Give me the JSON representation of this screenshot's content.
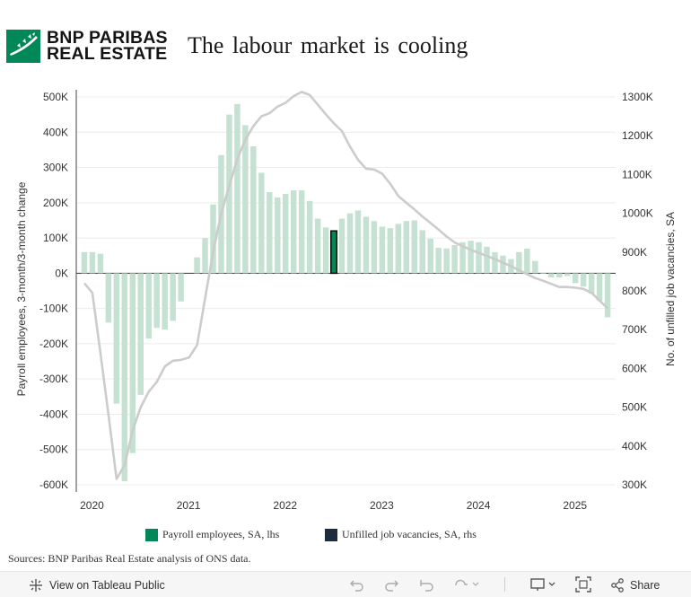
{
  "header": {
    "logo_line1": "BNP PARIBAS",
    "logo_line2": "REAL ESTATE",
    "title": "The labour market is cooling",
    "logo_color": "#008859"
  },
  "chart_data": {
    "type": "bar",
    "left_axis": {
      "label": "Payroll employees, 3-month/3-month change",
      "ylim": [
        -600000,
        500000
      ],
      "ticks": [
        500000,
        400000,
        300000,
        200000,
        100000,
        0,
        -100000,
        -200000,
        -300000,
        -400000,
        -500000,
        -600000
      ],
      "tick_labels": [
        "500K",
        "400K",
        "300K",
        "200K",
        "100K",
        "0K",
        "-100K",
        "-200K",
        "-300K",
        "-400K",
        "-500K",
        "-600K"
      ]
    },
    "right_axis": {
      "label": "No. of unfilled job vacancies, SA",
      "ylim": [
        300000,
        1300000
      ],
      "ticks": [
        1300000,
        1200000,
        1100000,
        1000000,
        900000,
        800000,
        700000,
        600000,
        500000,
        400000,
        300000
      ],
      "tick_labels": [
        "1300K",
        "1200K",
        "1100K",
        "1000K",
        "900K",
        "800K",
        "700K",
        "600K",
        "500K",
        "400K",
        "300K"
      ]
    },
    "x_axis": {
      "ticks": [
        2020,
        2021,
        2022,
        2023,
        2024,
        2025
      ],
      "tick_labels": [
        "2020",
        "2021",
        "2022",
        "2023",
        "2024",
        "2025"
      ],
      "range": [
        2019.875,
        2025.458
      ]
    },
    "grid": true,
    "legend_placement": "bottom",
    "highlighted_month": "2022-07",
    "series": [
      {
        "name": "Payroll employees, SA, lhs",
        "axis": "left",
        "kind": "bar",
        "color": "#c5e1d1",
        "highlight_color": "#008859",
        "start": "2019-12",
        "values": [
          60000,
          60000,
          55000,
          -140000,
          -370000,
          -590000,
          -510000,
          -345000,
          -185000,
          -155000,
          -160000,
          -135000,
          -80000,
          0,
          45000,
          100000,
          195000,
          335000,
          450000,
          480000,
          420000,
          360000,
          285000,
          230000,
          215000,
          225000,
          235000,
          235000,
          205000,
          155000,
          130000,
          120000,
          155000,
          170000,
          178000,
          160000,
          148000,
          132000,
          128000,
          140000,
          148000,
          150000,
          122000,
          98000,
          72000,
          70000,
          80000,
          88000,
          92000,
          88000,
          75000,
          60000,
          50000,
          40000,
          60000,
          70000,
          35000,
          2000,
          -12000,
          -12000,
          -8000,
          -28000,
          -38000,
          -58000,
          -78000,
          -125000
        ]
      },
      {
        "name": "Unfilled job vacancies, SA, rhs",
        "axis": "right",
        "kind": "line",
        "color": "#cccccc",
        "legend_color": "#1e2b3c",
        "start": "2019-12",
        "values": [
          820000,
          795000,
          640000,
          480000,
          315000,
          350000,
          440000,
          500000,
          540000,
          565000,
          605000,
          620000,
          622000,
          628000,
          660000,
          780000,
          900000,
          1000000,
          1070000,
          1140000,
          1190000,
          1225000,
          1250000,
          1258000,
          1275000,
          1285000,
          1302000,
          1313000,
          1305000,
          1280000,
          1255000,
          1232000,
          1212000,
          1172000,
          1138000,
          1115000,
          1113000,
          1102000,
          1076000,
          1045000,
          1027000,
          1010000,
          992000,
          975000,
          958000,
          940000,
          925000,
          915000,
          906000,
          898000,
          890000,
          882000,
          873000,
          864000,
          853000,
          843000,
          833000,
          826000,
          818000,
          810000,
          810000,
          808000,
          805000,
          795000,
          775000,
          755000
        ]
      }
    ]
  },
  "legend": {
    "items": [
      {
        "label": "Payroll employees, SA, lhs",
        "color": "#008859"
      },
      {
        "label": "Unfilled job vacancies, SA, rhs",
        "color": "#1e2b3c"
      }
    ]
  },
  "source": "Sources: BNP Paribas Real Estate analysis of ONS data.",
  "toolbar": {
    "view_label": "View on Tableau Public",
    "share_label": "Share"
  }
}
